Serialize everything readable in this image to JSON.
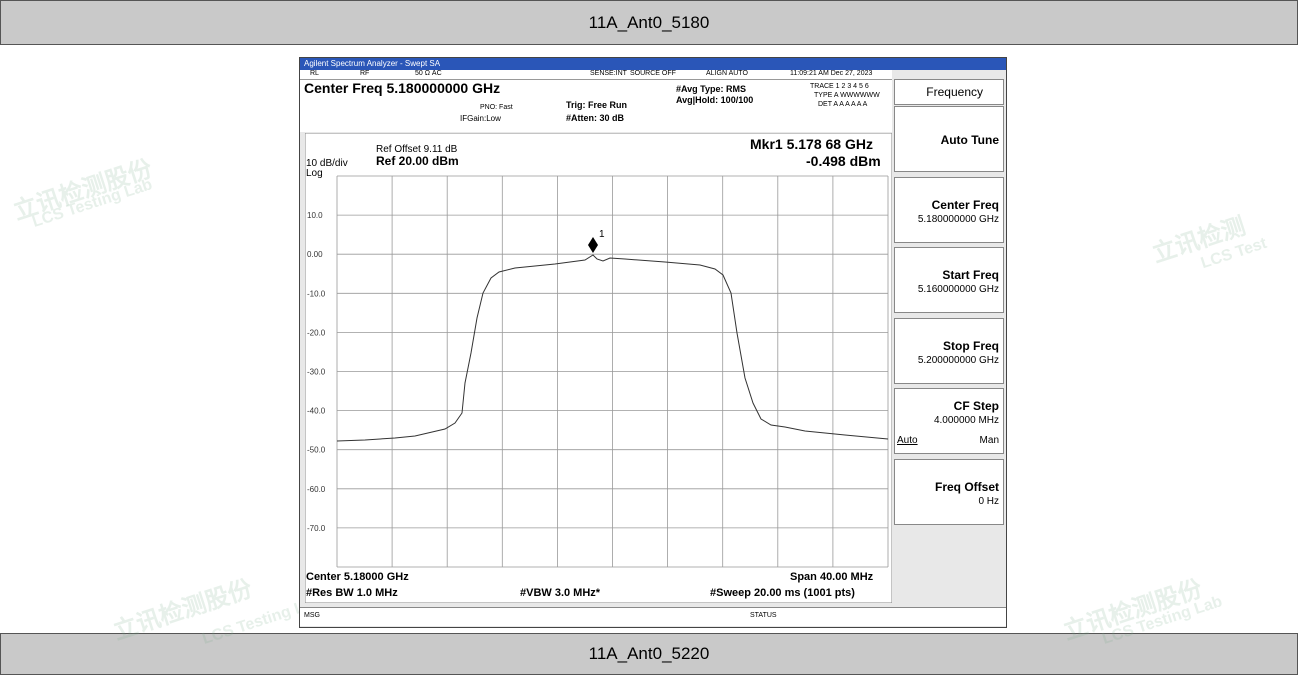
{
  "header": {
    "title": "11A_Ant0_5180"
  },
  "footer": {
    "title": "11A_Ant0_5220"
  },
  "watermarks": [
    "立讯检测股份",
    "LCS Testing Lab",
    "立讯检测",
    "LCS Test",
    "立讯检测股份",
    "LCS Testing Lab",
    "立讯检测股份",
    "LCS Testing Lab"
  ],
  "analyzer": {
    "window_title": "Agilent Spectrum Analyzer - Swept SA",
    "status_bar": [
      "RL",
      "RF",
      "50 Ω  AC",
      "SENSE:INT",
      "SOURCE OFF",
      "ALIGN AUTO",
      "11:09:21 AM Dec 27, 2023"
    ],
    "trace_rows": [
      "TRACE 1 2 3 4 5 6",
      "TYPE A WWWWWW",
      "DET A A A A A A"
    ],
    "center_freq": "Center Freq 5.180000000 GHz",
    "pno": "PNO: Fast",
    "ifgain": "IFGain:Low",
    "trig": "Trig: Free Run",
    "atten": "#Atten: 30 dB",
    "avg_type": "#Avg Type: RMS",
    "avg_hold": "Avg|Hold: 100/100",
    "ref_offset": "Ref Offset 9.11 dB",
    "scale": "10 dB/div",
    "log": "Log",
    "ref": "Ref 20.00 dBm",
    "marker_freq": "Mkr1 5.178 68 GHz",
    "marker_level": "-0.498 dBm",
    "marker_label": "1",
    "y_labels": [
      "10.0",
      "0.00",
      "-10.0",
      "-20.0",
      "-30.0",
      "-40.0",
      "-50.0",
      "-60.0",
      "-70.0"
    ],
    "center": "Center 5.18000 GHz",
    "span": "Span 40.00 MHz",
    "rbw": "#Res BW 1.0 MHz",
    "vbw": "#VBW 3.0 MHz*",
    "sweep": "#Sweep  20.00 ms (1001 pts)",
    "msg": "MSG",
    "status": "STATUS"
  },
  "softkeys": {
    "menu": "Frequency",
    "keys": [
      {
        "label": "Auto Tune"
      },
      {
        "label": "Center Freq",
        "value": "5.180000000 GHz"
      },
      {
        "label": "Start Freq",
        "value": "5.160000000 GHz"
      },
      {
        "label": "Stop Freq",
        "value": "5.200000000 GHz"
      },
      {
        "label": "CF Step",
        "value": "4.000000 MHz",
        "options": [
          "Auto",
          "Man"
        ]
      },
      {
        "label": "Freq Offset",
        "value": "0 Hz"
      }
    ]
  }
}
